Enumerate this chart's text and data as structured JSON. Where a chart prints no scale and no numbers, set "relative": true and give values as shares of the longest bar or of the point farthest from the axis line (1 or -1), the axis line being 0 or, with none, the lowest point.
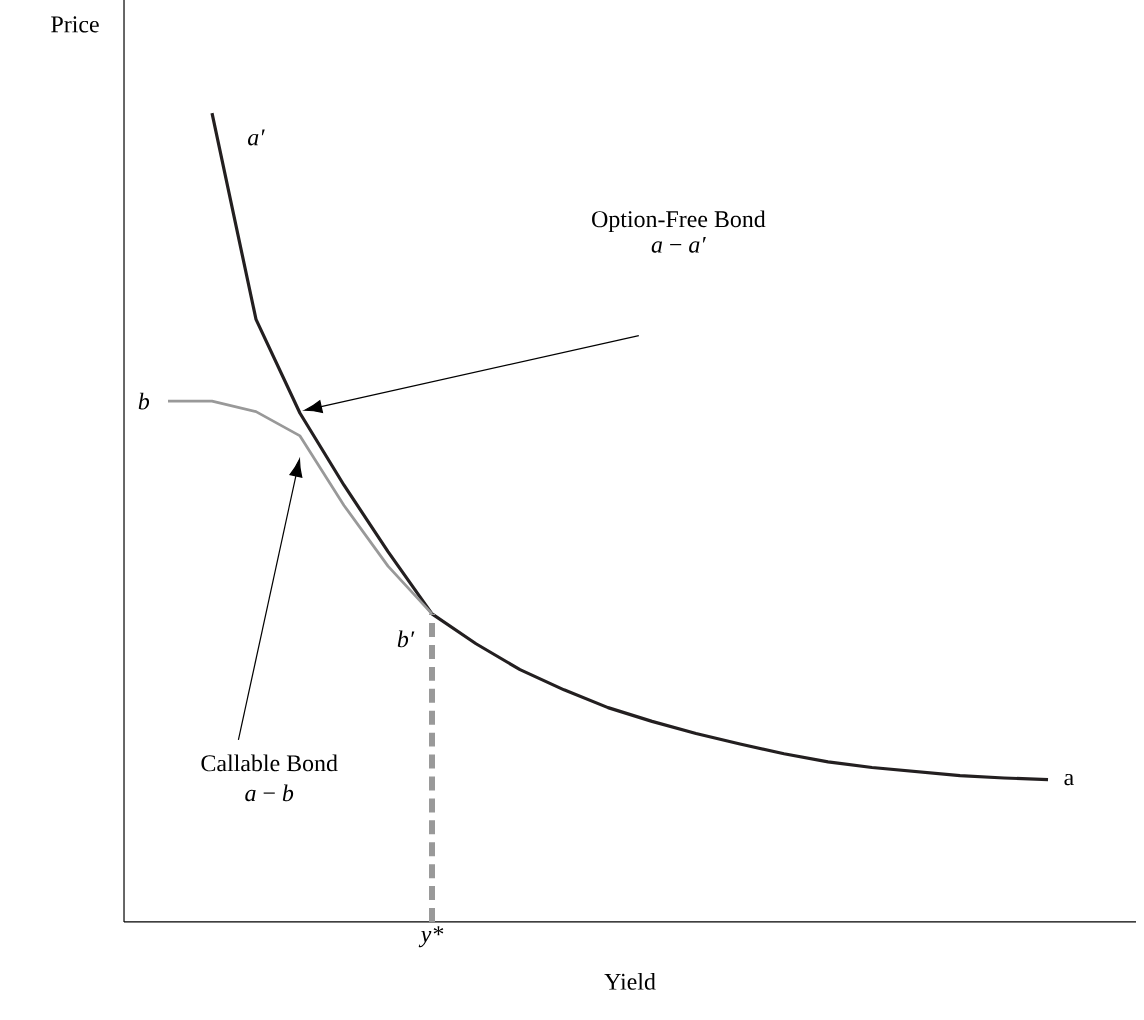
{
  "chart_data": {
    "type": "line",
    "relative": true,
    "xlabel": "Yield",
    "ylabel": "Price",
    "categories": [
      null,
      null,
      null,
      null,
      null,
      null,
      null,
      null,
      null,
      null,
      null,
      null,
      null,
      null,
      null,
      null,
      null,
      null,
      null,
      null,
      null
    ],
    "series": [
      {
        "color": "#231f20",
        "values": [
          null,
          1.0,
          0.745,
          0.629,
          0.54,
          0.458,
          0.381,
          0.344,
          0.312,
          0.287,
          0.265,
          0.248,
          0.233,
          0.22,
          0.208,
          0.198,
          0.191,
          0.186,
          0.181,
          0.178,
          0.176
        ]
      },
      {
        "color": "#999999",
        "values": [
          0.644,
          0.644,
          0.631,
          0.601,
          0.515,
          0.44,
          0.381,
          null,
          null,
          null,
          null,
          null,
          null,
          null,
          null,
          null,
          null,
          null,
          null,
          null,
          null
        ]
      }
    ],
    "annotations": [
      "*a′*",
      "a",
      "*b*",
      "*b′*",
      "Option-Free Bond",
      "*a* − *a′*",
      "Callable Bond",
      "*a* − *b*",
      "y*"
    ],
    "line_style": "solid"
  }
}
